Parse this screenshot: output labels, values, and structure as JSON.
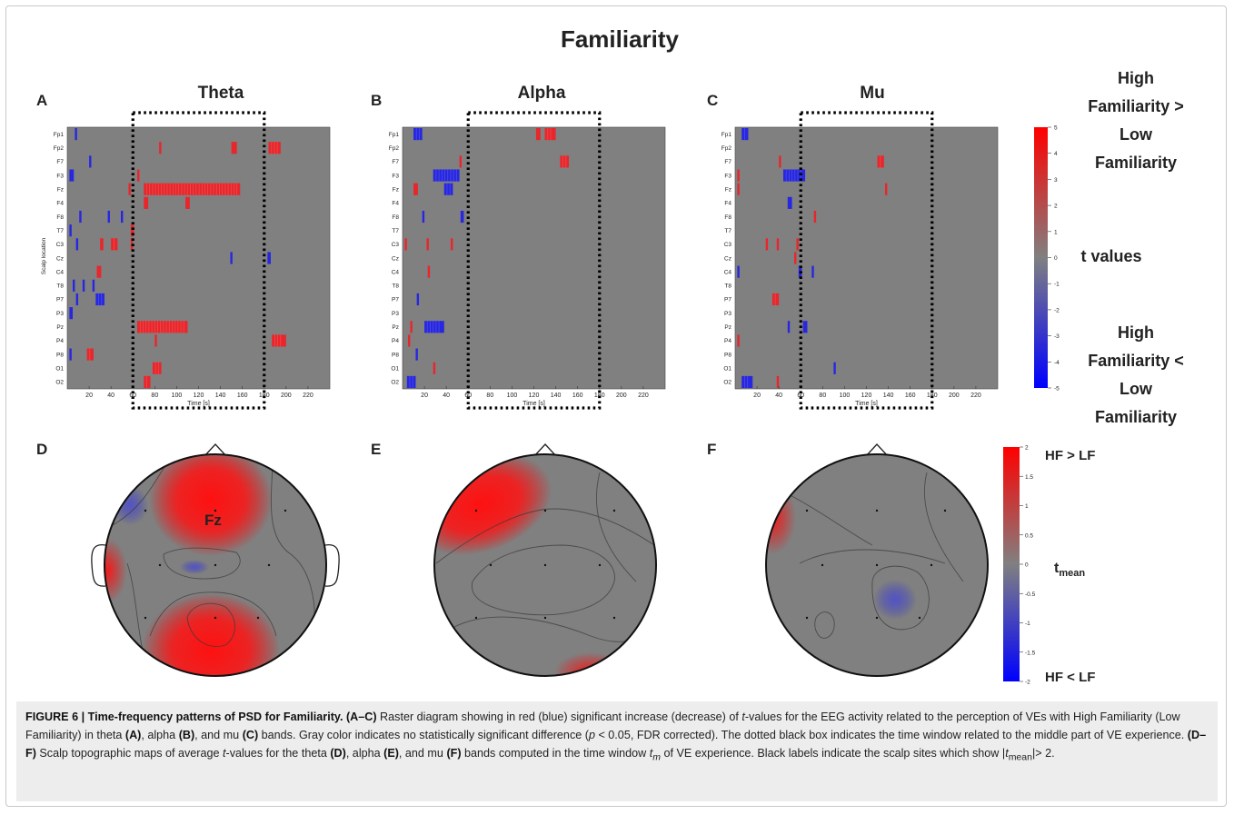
{
  "figure": {
    "title": "Familiarity",
    "electrodes": [
      "Fp1",
      "Fp2",
      "F7",
      "F3",
      "Fz",
      "F4",
      "F8",
      "T7",
      "C3",
      "Cz",
      "C4",
      "T8",
      "P7",
      "P3",
      "Pz",
      "P4",
      "P8",
      "O1",
      "O2"
    ],
    "xaxis_label": "Time [s]",
    "yaxis_label": "Scalp location",
    "xticks": [
      20,
      40,
      60,
      80,
      100,
      120,
      140,
      160,
      180,
      200,
      220
    ],
    "colors": {
      "background": "#808080",
      "positive": "#e8262b",
      "negative": "#2727e0",
      "box": "#000000"
    },
    "panels": [
      {
        "letter": "A",
        "band": "Theta"
      },
      {
        "letter": "B",
        "band": "Alpha"
      },
      {
        "letter": "C",
        "band": "Mu"
      }
    ],
    "raster_colorbar": {
      "ticks": [
        "5",
        "4",
        "3",
        "2",
        "1",
        "0",
        "-1",
        "-2",
        "-3",
        "-4",
        "-5"
      ]
    },
    "raster_legend": {
      "top": [
        "High",
        "Familiarity >",
        "Low",
        "Familiarity"
      ],
      "middle": "t values",
      "bottom": [
        "High",
        "Familiarity <",
        "Low",
        "Familiarity"
      ]
    },
    "topo_panels": [
      {
        "letter": "D",
        "site_label": "Fz"
      },
      {
        "letter": "E",
        "site_label": ""
      },
      {
        "letter": "F",
        "site_label": ""
      }
    ],
    "topo_colorbar": {
      "ticks": [
        "2",
        "1.5",
        "1",
        "0.5",
        "0",
        "-0.5",
        "-1",
        "-1.5",
        "-2"
      ],
      "label_main": "t",
      "label_sub": "mean",
      "top_label": "HF > LF",
      "bottom_label": "HF < LF"
    }
  },
  "caption": {
    "heading": "FIGURE 6 | Time-frequency patterns of PSD for Familiarity.",
    "text_html": "<b>(A–C)</b> Raster diagram showing in red (blue) significant increase (decrease) of <i>t</i>-values for the EEG activity related to the perception of VEs with High Familiarity (Low Familiarity) in theta <b>(A)</b>, alpha <b>(B)</b>, and mu <b>(C)</b> bands. Gray color indicates no statistically significant difference (<i>p</i> &lt; 0.05, FDR corrected). The dotted black box indicates the time window related to the middle part of VE experience. <b>(D–F)</b> Scalp topographic maps of average <i>t</i>-values for the theta <b>(D)</b>, alpha <b>(E)</b>, and mu <b>(F)</b> bands computed in the time window <i>t<sub>m</sub></i> of VE experience. Black labels indicate the scalp sites which show |<i>t</i><sub>mean</sub>|&gt; 2."
  },
  "chart_data": [
    {
      "type": "heatmap",
      "title": "Theta",
      "xlabel": "Time [s]",
      "ylabel": "Scalp location",
      "xlim": [
        0,
        240
      ],
      "rows": [
        "Fp1",
        "Fp2",
        "F7",
        "F3",
        "Fz",
        "F4",
        "F8",
        "T7",
        "C3",
        "Cz",
        "C4",
        "T8",
        "P7",
        "P3",
        "Pz",
        "P4",
        "P8",
        "O1",
        "O2"
      ],
      "time_window_box": [
        60,
        180
      ],
      "marks": [
        {
          "row": "Fp1",
          "start": 7,
          "end": 9,
          "sign": -1
        },
        {
          "row": "Fp2",
          "start": 84,
          "end": 86,
          "sign": 1
        },
        {
          "row": "Fp2",
          "start": 150,
          "end": 155,
          "sign": 1
        },
        {
          "row": "Fp2",
          "start": 184,
          "end": 195,
          "sign": 1
        },
        {
          "row": "F7",
          "start": 20,
          "end": 22,
          "sign": -1
        },
        {
          "row": "F3",
          "start": 2,
          "end": 6,
          "sign": -1
        },
        {
          "row": "F3",
          "start": 64,
          "end": 66,
          "sign": 1
        },
        {
          "row": "Fz",
          "start": 56,
          "end": 58,
          "sign": 1
        },
        {
          "row": "Fz",
          "start": 70,
          "end": 158,
          "sign": 1
        },
        {
          "row": "F4",
          "start": 70,
          "end": 74,
          "sign": 1
        },
        {
          "row": "F4",
          "start": 108,
          "end": 112,
          "sign": 1
        },
        {
          "row": "F8",
          "start": 11,
          "end": 13,
          "sign": -1
        },
        {
          "row": "F8",
          "start": 37,
          "end": 39,
          "sign": -1
        },
        {
          "row": "F8",
          "start": 49,
          "end": 51,
          "sign": -1
        },
        {
          "row": "T7",
          "start": 2,
          "end": 4,
          "sign": -1
        },
        {
          "row": "T7",
          "start": 58,
          "end": 61,
          "sign": 1
        },
        {
          "row": "C3",
          "start": 8,
          "end": 10,
          "sign": -1
        },
        {
          "row": "C3",
          "start": 30,
          "end": 33,
          "sign": 1
        },
        {
          "row": "C3",
          "start": 40,
          "end": 46,
          "sign": 1
        },
        {
          "row": "C3",
          "start": 58,
          "end": 60,
          "sign": 1
        },
        {
          "row": "Cz",
          "start": 149,
          "end": 151,
          "sign": -1
        },
        {
          "row": "Cz",
          "start": 183,
          "end": 186,
          "sign": -1
        },
        {
          "row": "C4",
          "start": 27,
          "end": 31,
          "sign": 1
        },
        {
          "row": "T8",
          "start": 5,
          "end": 7,
          "sign": -1
        },
        {
          "row": "T8",
          "start": 14,
          "end": 16,
          "sign": -1
        },
        {
          "row": "T8",
          "start": 23,
          "end": 25,
          "sign": -1
        },
        {
          "row": "P7",
          "start": 8,
          "end": 10,
          "sign": -1
        },
        {
          "row": "P7",
          "start": 26,
          "end": 34,
          "sign": -1
        },
        {
          "row": "P3",
          "start": 2,
          "end": 5,
          "sign": -1
        },
        {
          "row": "Pz",
          "start": 64,
          "end": 110,
          "sign": 1
        },
        {
          "row": "P4",
          "start": 80,
          "end": 82,
          "sign": 1
        },
        {
          "row": "P4",
          "start": 187,
          "end": 200,
          "sign": 1
        },
        {
          "row": "P8",
          "start": 2,
          "end": 4,
          "sign": -1
        },
        {
          "row": "P8",
          "start": 18,
          "end": 24,
          "sign": 1
        },
        {
          "row": "O1",
          "start": 78,
          "end": 86,
          "sign": 1
        },
        {
          "row": "O2",
          "start": 70,
          "end": 76,
          "sign": 1
        }
      ]
    },
    {
      "type": "heatmap",
      "title": "Alpha",
      "xlabel": "Time [s]",
      "ylabel": "",
      "xlim": [
        0,
        240
      ],
      "rows": [
        "Fp1",
        "Fp2",
        "F7",
        "F3",
        "Fz",
        "F4",
        "F8",
        "T7",
        "C3",
        "Cz",
        "C4",
        "T8",
        "P7",
        "P3",
        "Pz",
        "P4",
        "P8",
        "O1",
        "O2"
      ],
      "time_window_box": [
        60,
        180
      ],
      "marks": [
        {
          "row": "Fp1",
          "start": 10,
          "end": 18,
          "sign": -1
        },
        {
          "row": "Fp1",
          "start": 122,
          "end": 126,
          "sign": 1
        },
        {
          "row": "Fp1",
          "start": 130,
          "end": 140,
          "sign": 1
        },
        {
          "row": "F7",
          "start": 52,
          "end": 54,
          "sign": 1
        },
        {
          "row": "F7",
          "start": 144,
          "end": 152,
          "sign": 1
        },
        {
          "row": "F3",
          "start": 28,
          "end": 52,
          "sign": -1
        },
        {
          "row": "Fz",
          "start": 10,
          "end": 14,
          "sign": 1
        },
        {
          "row": "Fz",
          "start": 38,
          "end": 46,
          "sign": -1
        },
        {
          "row": "F8",
          "start": 18,
          "end": 20,
          "sign": -1
        },
        {
          "row": "F8",
          "start": 53,
          "end": 56,
          "sign": -1
        },
        {
          "row": "C3",
          "start": 2,
          "end": 4,
          "sign": 1
        },
        {
          "row": "C3",
          "start": 22,
          "end": 24,
          "sign": 1
        },
        {
          "row": "C3",
          "start": 44,
          "end": 46,
          "sign": 1
        },
        {
          "row": "C4",
          "start": 23,
          "end": 25,
          "sign": 1
        },
        {
          "row": "P7",
          "start": 13,
          "end": 15,
          "sign": -1
        },
        {
          "row": "Pz",
          "start": 7,
          "end": 9,
          "sign": 1
        },
        {
          "row": "Pz",
          "start": 20,
          "end": 38,
          "sign": -1
        },
        {
          "row": "P4",
          "start": 5,
          "end": 7,
          "sign": 1
        },
        {
          "row": "P8",
          "start": 12,
          "end": 14,
          "sign": -1
        },
        {
          "row": "O1",
          "start": 28,
          "end": 30,
          "sign": 1
        },
        {
          "row": "O2",
          "start": 4,
          "end": 12,
          "sign": -1
        }
      ]
    },
    {
      "type": "heatmap",
      "title": "Mu",
      "xlabel": "Time [s]",
      "ylabel": "",
      "xlim": [
        0,
        240
      ],
      "rows": [
        "Fp1",
        "Fp2",
        "F7",
        "F3",
        "Fz",
        "F4",
        "F8",
        "T7",
        "C3",
        "Cz",
        "C4",
        "T8",
        "P7",
        "P3",
        "Pz",
        "P4",
        "P8",
        "O1",
        "O2"
      ],
      "time_window_box": [
        60,
        180
      ],
      "marks": [
        {
          "row": "Fp1",
          "start": 6,
          "end": 12,
          "sign": -1
        },
        {
          "row": "F7",
          "start": 40,
          "end": 42,
          "sign": 1
        },
        {
          "row": "F7",
          "start": 130,
          "end": 136,
          "sign": 1
        },
        {
          "row": "F3",
          "start": 2,
          "end": 4,
          "sign": 1
        },
        {
          "row": "F3",
          "start": 44,
          "end": 64,
          "sign": -1
        },
        {
          "row": "Fz",
          "start": 2,
          "end": 4,
          "sign": 1
        },
        {
          "row": "Fz",
          "start": 137,
          "end": 139,
          "sign": 1
        },
        {
          "row": "F4",
          "start": 48,
          "end": 52,
          "sign": -1
        },
        {
          "row": "F8",
          "start": 72,
          "end": 74,
          "sign": 1
        },
        {
          "row": "C3",
          "start": 28,
          "end": 30,
          "sign": 1
        },
        {
          "row": "C3",
          "start": 38,
          "end": 40,
          "sign": 1
        },
        {
          "row": "C3",
          "start": 56,
          "end": 58,
          "sign": 1
        },
        {
          "row": "Cz",
          "start": 54,
          "end": 56,
          "sign": 1
        },
        {
          "row": "C4",
          "start": 2,
          "end": 4,
          "sign": -1
        },
        {
          "row": "C4",
          "start": 58,
          "end": 61,
          "sign": -1
        },
        {
          "row": "C4",
          "start": 70,
          "end": 72,
          "sign": -1
        },
        {
          "row": "P7",
          "start": 34,
          "end": 40,
          "sign": 1
        },
        {
          "row": "Pz",
          "start": 48,
          "end": 50,
          "sign": -1
        },
        {
          "row": "Pz",
          "start": 62,
          "end": 66,
          "sign": -1
        },
        {
          "row": "P4",
          "start": 2,
          "end": 4,
          "sign": 1
        },
        {
          "row": "O1",
          "start": 90,
          "end": 92,
          "sign": -1
        },
        {
          "row": "O2",
          "start": 6,
          "end": 16,
          "sign": -1
        },
        {
          "row": "O2",
          "start": 38,
          "end": 40,
          "sign": 1
        }
      ]
    }
  ]
}
